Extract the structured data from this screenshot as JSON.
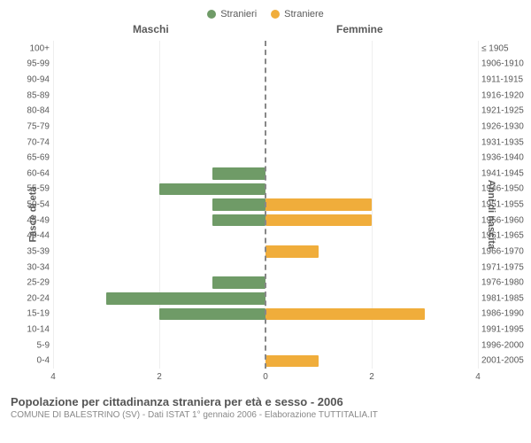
{
  "legend": {
    "male": {
      "label": "Stranieri",
      "color": "#6f9b67"
    },
    "female": {
      "label": "Straniere",
      "color": "#f0ad3b"
    }
  },
  "section_titles": {
    "left": "Maschi",
    "right": "Femmine"
  },
  "axis_titles": {
    "left": "Fasce di età",
    "right": "Anni di nascita"
  },
  "xaxis": {
    "max": 4,
    "ticks": [
      -4,
      -2,
      0,
      2,
      4
    ],
    "tick_labels": [
      "4",
      "2",
      "0",
      "2",
      "4"
    ]
  },
  "colors": {
    "grid": "#eeeeee",
    "center": "#888888",
    "text": "#5a5a5a",
    "background": "#ffffff"
  },
  "rows": [
    {
      "age": "100+",
      "birth": "≤ 1905",
      "m": 0,
      "f": 0
    },
    {
      "age": "95-99",
      "birth": "1906-1910",
      "m": 0,
      "f": 0
    },
    {
      "age": "90-94",
      "birth": "1911-1915",
      "m": 0,
      "f": 0
    },
    {
      "age": "85-89",
      "birth": "1916-1920",
      "m": 0,
      "f": 0
    },
    {
      "age": "80-84",
      "birth": "1921-1925",
      "m": 0,
      "f": 0
    },
    {
      "age": "75-79",
      "birth": "1926-1930",
      "m": 0,
      "f": 0
    },
    {
      "age": "70-74",
      "birth": "1931-1935",
      "m": 0,
      "f": 0
    },
    {
      "age": "65-69",
      "birth": "1936-1940",
      "m": 0,
      "f": 0
    },
    {
      "age": "60-64",
      "birth": "1941-1945",
      "m": 1,
      "f": 0
    },
    {
      "age": "55-59",
      "birth": "1946-1950",
      "m": 2,
      "f": 0
    },
    {
      "age": "50-54",
      "birth": "1951-1955",
      "m": 1,
      "f": 2
    },
    {
      "age": "45-49",
      "birth": "1956-1960",
      "m": 1,
      "f": 2
    },
    {
      "age": "40-44",
      "birth": "1961-1965",
      "m": 0,
      "f": 0
    },
    {
      "age": "35-39",
      "birth": "1966-1970",
      "m": 0,
      "f": 1
    },
    {
      "age": "30-34",
      "birth": "1971-1975",
      "m": 0,
      "f": 0
    },
    {
      "age": "25-29",
      "birth": "1976-1980",
      "m": 1,
      "f": 0
    },
    {
      "age": "20-24",
      "birth": "1981-1985",
      "m": 3,
      "f": 0
    },
    {
      "age": "15-19",
      "birth": "1986-1990",
      "m": 2,
      "f": 3
    },
    {
      "age": "10-14",
      "birth": "1991-1995",
      "m": 0,
      "f": 0
    },
    {
      "age": "5-9",
      "birth": "1996-2000",
      "m": 0,
      "f": 0
    },
    {
      "age": "0-4",
      "birth": "2001-2005",
      "m": 0,
      "f": 1
    }
  ],
  "footer": {
    "title": "Popolazione per cittadinanza straniera per età e sesso - 2006",
    "subtitle": "COMUNE DI BALESTRINO (SV) - Dati ISTAT 1° gennaio 2006 - Elaborazione TUTTITALIA.IT"
  }
}
